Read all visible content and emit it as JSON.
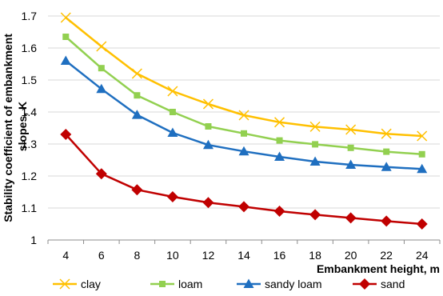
{
  "chart_data": {
    "type": "line",
    "title": "",
    "xlabel": "Embankment height, m",
    "ylabel": "Stability coefficient of embankment slopes, K",
    "ylabel_lines": [
      "Stability coefficient of embankment",
      "slopes, K"
    ],
    "x": [
      4,
      6,
      8,
      10,
      12,
      14,
      16,
      18,
      20,
      22,
      24
    ],
    "xticks": [
      "4",
      "6",
      "8",
      "10",
      "12",
      "14",
      "16",
      "18",
      "20",
      "22",
      "24"
    ],
    "ylim": [
      1,
      1.7
    ],
    "yticks": [
      "1",
      "1.1",
      "1.2",
      "1.3",
      "1.4",
      "1.5",
      "1.6",
      "1.7"
    ],
    "grid": "horizontal",
    "legend_position": "bottom",
    "series": [
      {
        "name": "clay",
        "marker": "x",
        "color": "#FFC000",
        "values": [
          1.695,
          1.605,
          1.52,
          1.465,
          1.425,
          1.39,
          1.368,
          1.354,
          1.345,
          1.332,
          1.325
        ]
      },
      {
        "name": "loam",
        "marker": "square",
        "color": "#92D050",
        "values": [
          1.635,
          1.537,
          1.452,
          1.4,
          1.355,
          1.333,
          1.311,
          1.299,
          1.288,
          1.276,
          1.268
        ]
      },
      {
        "name": "sandy loam",
        "marker": "triangle",
        "color": "#1F6FC0",
        "values": [
          1.56,
          1.472,
          1.391,
          1.335,
          1.297,
          1.277,
          1.26,
          1.245,
          1.235,
          1.228,
          1.222
        ]
      },
      {
        "name": "sand",
        "marker": "diamond",
        "color": "#C00000",
        "values": [
          1.33,
          1.207,
          1.157,
          1.135,
          1.117,
          1.104,
          1.09,
          1.079,
          1.069,
          1.059,
          1.05
        ]
      }
    ]
  }
}
